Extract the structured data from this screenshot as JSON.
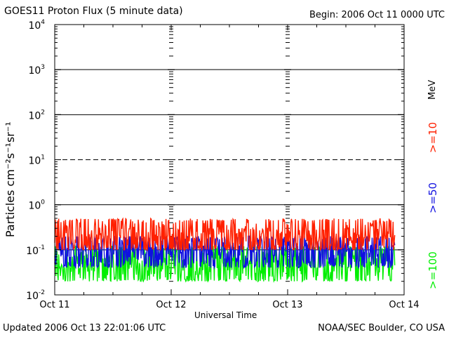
{
  "header": {
    "title": "GOES11 Proton Flux (5 minute data)",
    "begin": "Begin: 2006 Oct 11 0000 UTC"
  },
  "footer": {
    "updated": "Updated 2006 Oct 13 22:01:06 UTC",
    "credit": "NOAA/SEC Boulder, CO USA"
  },
  "chart_data": {
    "type": "line",
    "title": "GOES11 Proton Flux (5 minute data)",
    "xlabel": "Universal Time",
    "ylabel": "Particles cm⁻²s⁻¹sr⁻¹",
    "yscale": "log",
    "ylim": [
      0.01,
      10000
    ],
    "xlim_days": [
      0,
      3
    ],
    "x_ticks": [
      "Oct 11",
      "Oct 12",
      "Oct 13",
      "Oct 14"
    ],
    "y_ticks": [
      {
        "base": "10",
        "exp": "4"
      },
      {
        "base": "10",
        "exp": "3"
      },
      {
        "base": "10",
        "exp": "2"
      },
      {
        "base": "10",
        "exp": "1"
      },
      {
        "base": "10",
        "exp": "0"
      },
      {
        "base": "10",
        "exp": "-1"
      },
      {
        "base": "10",
        "exp": "-2"
      }
    ],
    "reference_lines": [
      {
        "value": 1000,
        "style": "solid"
      },
      {
        "value": 100,
        "style": "solid"
      },
      {
        "value": 10,
        "style": "dashed"
      },
      {
        "value": 1,
        "style": "solid"
      },
      {
        "value": 0.1,
        "style": "solid"
      }
    ],
    "units_label": "MeV",
    "series": [
      {
        "name": ">=10",
        "color": "#ff2000",
        "typical_value": 0.2,
        "range": [
          0.1,
          0.5
        ]
      },
      {
        "name": ">=50",
        "color": "#1010e0",
        "typical_value": 0.09,
        "range": [
          0.04,
          0.2
        ]
      },
      {
        "name": ">=100",
        "color": "#00ee00",
        "typical_value": 0.05,
        "range": [
          0.02,
          0.12
        ]
      }
    ]
  }
}
